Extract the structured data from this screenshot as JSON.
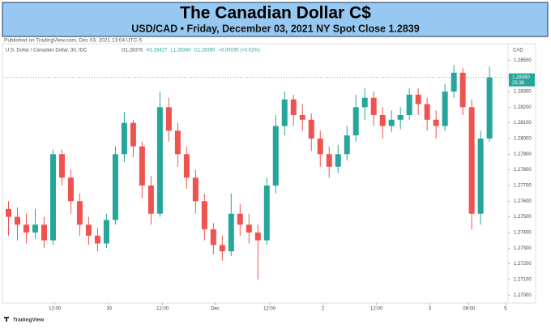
{
  "chart_data": {
    "type": "candlestick",
    "title": "The Canadian Dollar C$",
    "subtitle": "USD/CAD • Friday, December 03, 2021 NY Spot Close 1.2839",
    "published": "Published on TradingView.com, Dec 03, 2021 13:04 UTC-5",
    "symbol": "U.S. Dollar / Canadian Dollar, 30, IDC",
    "legend_items": [
      "O1.28376",
      "H1.28427",
      "L1.28340",
      "C1.28390",
      "+0.00030 (+0.02%)"
    ],
    "currency": "CAD",
    "logo": "TradingView",
    "up_color": "#26a69a",
    "down_color": "#ef5350",
    "grid": false,
    "open": [
      1.2755,
      1.275,
      1.2745,
      1.274,
      1.2745,
      1.2735,
      1.279,
      1.2775,
      1.276,
      1.2745,
      1.2738,
      1.2733,
      1.2748,
      1.279,
      1.281,
      1.2795,
      1.277,
      1.2752,
      1.282,
      1.2805,
      1.279,
      1.2775,
      1.276,
      1.2742,
      1.2732,
      1.2728,
      1.2752,
      1.2745,
      1.274,
      1.2735,
      1.277,
      1.2808,
      1.2825,
      1.2815,
      1.2812,
      1.28,
      1.279,
      1.2782,
      1.279,
      1.2802,
      1.282,
      1.2826,
      1.2815,
      1.2808,
      1.2812,
      1.2815,
      1.2828,
      1.2822,
      1.2812,
      1.2808,
      1.283,
      1.2842,
      1.282,
      1.2752,
      1.28
    ],
    "high": [
      1.276,
      1.2756,
      1.2752,
      1.2755,
      1.275,
      1.2793,
      1.2793,
      1.278,
      1.2765,
      1.275,
      1.2743,
      1.2752,
      1.2795,
      1.2817,
      1.2812,
      1.2798,
      1.2776,
      1.283,
      1.2826,
      1.281,
      1.2795,
      1.278,
      1.2765,
      1.2746,
      1.2738,
      1.2765,
      1.2758,
      1.2752,
      1.2745,
      1.2775,
      1.2815,
      1.283,
      1.2828,
      1.2822,
      1.2816,
      1.2805,
      1.2795,
      1.2796,
      1.2808,
      1.2828,
      1.2832,
      1.283,
      1.282,
      1.2818,
      1.282,
      1.2832,
      1.2832,
      1.2826,
      1.2818,
      1.2835,
      1.2847,
      1.2845,
      1.2825,
      1.2805,
      1.2846
    ],
    "low": [
      1.2738,
      1.2735,
      1.2733,
      1.2736,
      1.273,
      1.2732,
      1.277,
      1.2752,
      1.2738,
      1.2732,
      1.2728,
      1.273,
      1.2745,
      1.2785,
      1.2788,
      1.2762,
      1.2745,
      1.275,
      1.2798,
      1.2782,
      1.2768,
      1.2752,
      1.2735,
      1.2726,
      1.2722,
      1.2725,
      1.2738,
      1.2733,
      1.271,
      1.2732,
      1.2765,
      1.2802,
      1.2808,
      1.2805,
      1.2792,
      1.2782,
      1.2775,
      1.2778,
      1.2786,
      1.2798,
      1.2812,
      1.2808,
      1.28,
      1.2804,
      1.2806,
      1.2812,
      1.2815,
      1.2805,
      1.28,
      1.2805,
      1.2826,
      1.2815,
      1.2742,
      1.2745,
      1.2798
    ],
    "close": [
      1.275,
      1.2745,
      1.274,
      1.2745,
      1.2735,
      1.279,
      1.2775,
      1.276,
      1.2745,
      1.2738,
      1.2733,
      1.2748,
      1.279,
      1.281,
      1.2795,
      1.277,
      1.2752,
      1.282,
      1.2805,
      1.279,
      1.2775,
      1.276,
      1.2742,
      1.2732,
      1.2728,
      1.2752,
      1.2745,
      1.274,
      1.2735,
      1.277,
      1.2808,
      1.2825,
      1.2815,
      1.2812,
      1.28,
      1.279,
      1.2782,
      1.279,
      1.2802,
      1.282,
      1.2826,
      1.2815,
      1.2808,
      1.2812,
      1.2815,
      1.2828,
      1.2822,
      1.2812,
      1.2808,
      1.283,
      1.2842,
      1.282,
      1.2752,
      1.28,
      1.2839
    ],
    "xlim": [
      -0.5,
      55.9
    ],
    "xticks": [
      {
        "value": 5.2,
        "label": "12:00"
      },
      {
        "value": 11.3,
        "label": "30"
      },
      {
        "value": 17.3,
        "label": "12:00"
      },
      {
        "value": 23.2,
        "label": "Dec"
      },
      {
        "value": 29.3,
        "label": "12:00"
      },
      {
        "value": 35.3,
        "label": "2"
      },
      {
        "value": 41.3,
        "label": "12:00"
      },
      {
        "value": 47.3,
        "label": "3"
      },
      {
        "value": 51.7,
        "label": "09:00"
      },
      {
        "value": 55.8,
        "label": "5"
      }
    ],
    "ylim": [
      1.2696,
      1.286
    ],
    "yticks": [
      {
        "value": 1.27,
        "label": "1.27000"
      },
      {
        "value": 1.271,
        "label": "1.27100"
      },
      {
        "value": 1.272,
        "label": "1.27200"
      },
      {
        "value": 1.273,
        "label": "1.27300"
      },
      {
        "value": 1.274,
        "label": "1.27400"
      },
      {
        "value": 1.275,
        "label": "1.27500"
      },
      {
        "value": 1.276,
        "label": "1.27600"
      },
      {
        "value": 1.277,
        "label": "1.27700"
      },
      {
        "value": 1.278,
        "label": "1.27800"
      },
      {
        "value": 1.279,
        "label": "1.27900"
      },
      {
        "value": 1.28,
        "label": "1.28000"
      },
      {
        "value": 1.281,
        "label": "1.28100"
      },
      {
        "value": 1.282,
        "label": "1.28200"
      },
      {
        "value": 1.283,
        "label": "1.28300"
      },
      {
        "value": 1.284,
        "label": "1.28400"
      },
      {
        "value": 1.285,
        "label": "1.28500"
      }
    ],
    "last_price": {
      "value": 1.2839,
      "label": "1.28390"
    },
    "countdown": "25:36"
  }
}
